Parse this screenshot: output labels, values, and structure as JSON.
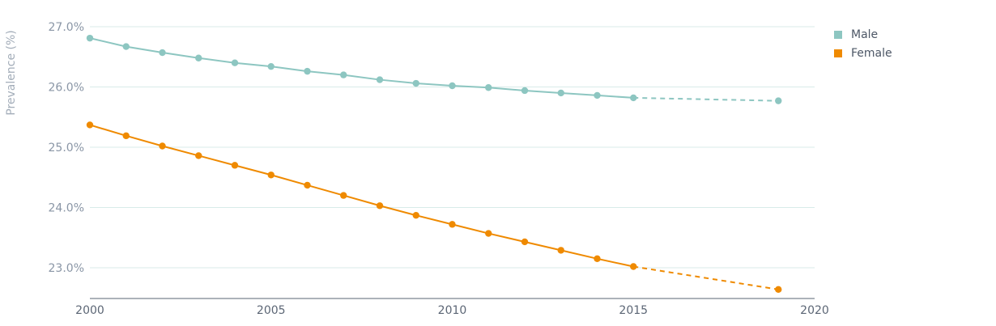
{
  "chart_data": {
    "type": "line",
    "ylabel": "Prevalence (%)",
    "xlabel": "",
    "xlim": [
      2000,
      2020
    ],
    "ylim": [
      22.5,
      27.0
    ],
    "x_ticks": [
      2000,
      2005,
      2010,
      2015,
      2020
    ],
    "y_ticks": [
      "27.0%",
      "26.0%",
      "25.0%",
      "24.0%",
      "23.0%"
    ],
    "y_tick_values": [
      27.0,
      26.0,
      25.0,
      24.0,
      23.0
    ],
    "grid": "horizontal",
    "legend_position": "right",
    "series": [
      {
        "name": "Male",
        "color": "#8dc6c1",
        "solid": {
          "x": [
            2000,
            2001,
            2002,
            2003,
            2004,
            2005,
            2006,
            2007,
            2008,
            2009,
            2010,
            2011,
            2012,
            2013,
            2014,
            2015
          ],
          "y": [
            26.81,
            26.67,
            26.57,
            26.48,
            26.4,
            26.34,
            26.26,
            26.2,
            26.12,
            26.06,
            26.02,
            25.99,
            25.94,
            25.9,
            25.86,
            25.82
          ]
        },
        "projected": {
          "x": [
            2015,
            2019
          ],
          "y": [
            25.82,
            25.77
          ]
        }
      },
      {
        "name": "Female",
        "color": "#ef8a00",
        "solid": {
          "x": [
            2000,
            2001,
            2002,
            2003,
            2004,
            2005,
            2006,
            2007,
            2008,
            2009,
            2010,
            2011,
            2012,
            2013,
            2014,
            2015
          ],
          "y": [
            25.37,
            25.19,
            25.02,
            24.86,
            24.7,
            24.54,
            24.37,
            24.2,
            24.03,
            23.87,
            23.72,
            23.57,
            23.43,
            23.29,
            23.15,
            23.02
          ]
        },
        "projected": {
          "x": [
            2015,
            2019
          ],
          "y": [
            23.02,
            22.64
          ]
        }
      }
    ]
  },
  "legend": {
    "items": [
      {
        "label": "Male",
        "color": "#8dc6c1"
      },
      {
        "label": "Female",
        "color": "#ef8a00"
      }
    ]
  }
}
